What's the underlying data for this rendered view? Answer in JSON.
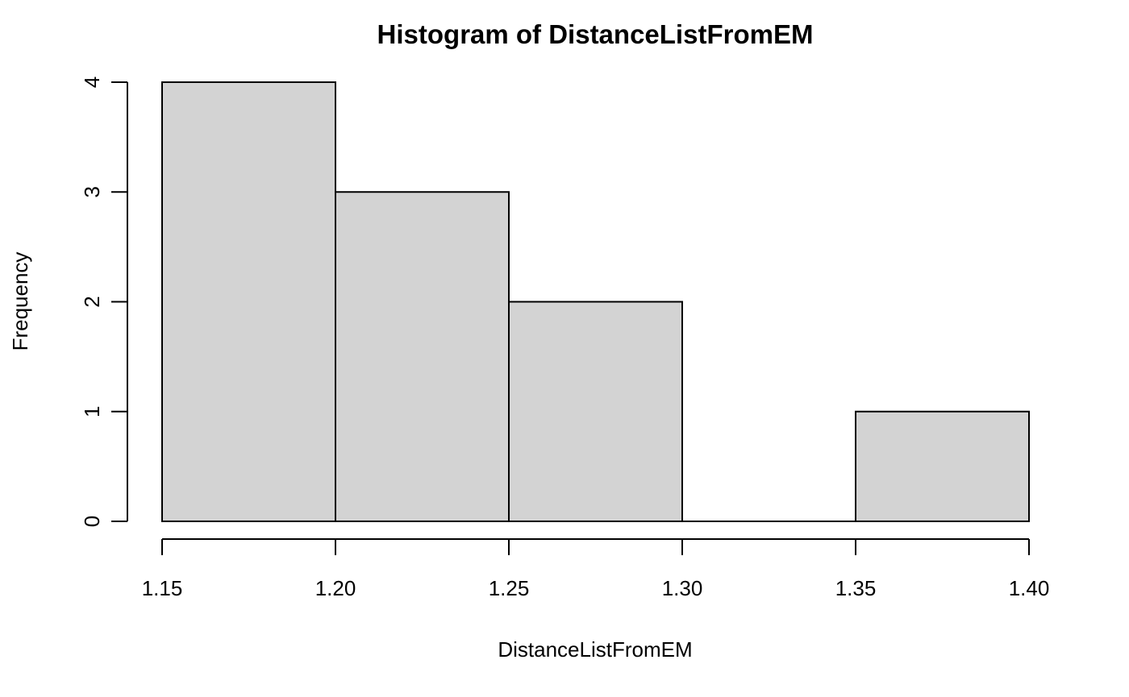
{
  "chart_data": {
    "type": "bar",
    "subtype": "histogram",
    "title": "Histogram of DistanceListFromEM",
    "xlabel": "DistanceListFromEM",
    "ylabel": "Frequency",
    "bins": [
      {
        "start": 1.15,
        "end": 1.2,
        "count": 4
      },
      {
        "start": 1.2,
        "end": 1.25,
        "count": 3
      },
      {
        "start": 1.25,
        "end": 1.3,
        "count": 2
      },
      {
        "start": 1.3,
        "end": 1.35,
        "count": 0
      },
      {
        "start": 1.35,
        "end": 1.4,
        "count": 1
      }
    ],
    "xlim": [
      1.15,
      1.4
    ],
    "ylim": [
      0,
      4
    ],
    "x_ticks": [
      "1.15",
      "1.20",
      "1.25",
      "1.30",
      "1.35",
      "1.40"
    ],
    "y_ticks": [
      "0",
      "1",
      "2",
      "3",
      "4"
    ],
    "grid": false,
    "colors": {
      "bar_fill": "#d3d3d3",
      "bar_border": "#000000"
    }
  }
}
